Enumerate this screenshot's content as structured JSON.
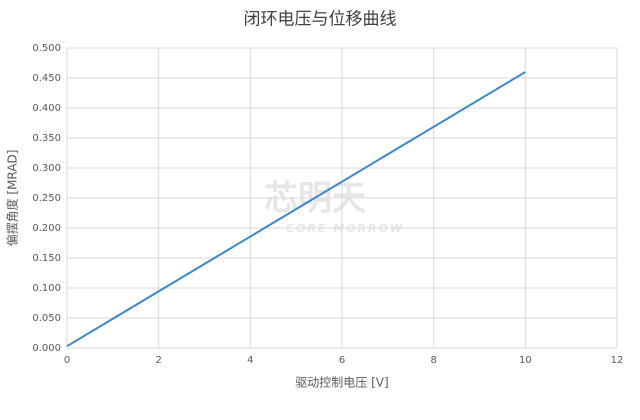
{
  "chart_data": {
    "type": "line",
    "title": "闭环电压与位移曲线",
    "x_label": "驱动控制电压 [V]",
    "y_label": "偏摆角度 [MRAD]",
    "watermark": {
      "text": "芯明天",
      "subtext": "CORE MORROW"
    },
    "x": [
      0,
      10
    ],
    "series": [
      {
        "color": "#3a87cf",
        "values": [
          0.003,
          0.46
        ]
      }
    ],
    "xlim": [
      0,
      12
    ],
    "xticks": [
      0,
      2,
      4,
      6,
      8,
      10,
      12
    ],
    "ylim": [
      0,
      0.5
    ],
    "yticks": [
      {
        "value": 0,
        "label": "0.000"
      },
      {
        "value": 0.05,
        "label": "0.050"
      },
      {
        "value": 0.1,
        "label": "0.100"
      },
      {
        "value": 0.15,
        "label": "0.150"
      },
      {
        "value": 0.2,
        "label": "0.200"
      },
      {
        "value": 0.25,
        "label": "0.250"
      },
      {
        "value": 0.3,
        "label": "0.300"
      },
      {
        "value": 0.35,
        "label": "0.350"
      },
      {
        "value": 0.4,
        "label": "0.400"
      },
      {
        "value": 0.45,
        "label": "0.450"
      },
      {
        "value": 0.5,
        "label": "0.500"
      }
    ],
    "grid": true
  }
}
